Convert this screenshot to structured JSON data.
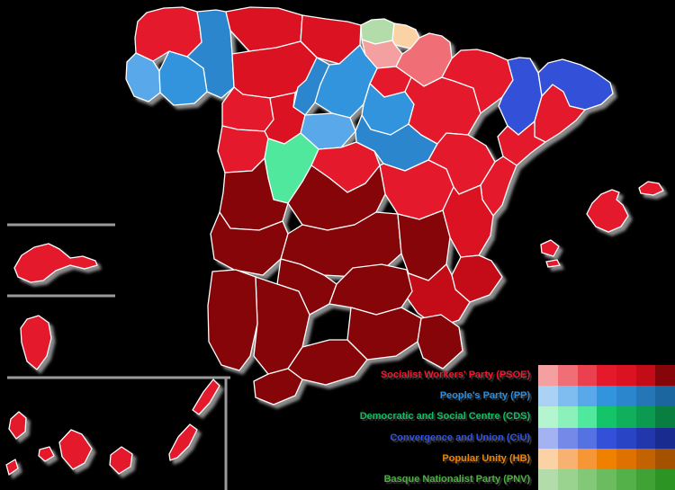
{
  "map": {
    "background_color": "#000000",
    "province_border_color": "#FFFFFF",
    "separator_color": "#9A9A9A",
    "regions": [
      {
        "id": "a-coruna",
        "name": "A Coruña",
        "party": "PSOE",
        "color": "#E4192B"
      },
      {
        "id": "lugo",
        "name": "Lugo",
        "party": "PP",
        "color": "#2B86CE"
      },
      {
        "id": "pontevedra",
        "name": "Pontevedra",
        "party": "PP",
        "color": "#58A8EA"
      },
      {
        "id": "ourense",
        "name": "Ourense",
        "party": "PP",
        "color": "#3394DE"
      },
      {
        "id": "asturias",
        "name": "Asturias",
        "party": "PSOE",
        "color": "#DA1222"
      },
      {
        "id": "cantabria",
        "name": "Cantabria",
        "party": "PSOE",
        "color": "#DA1222"
      },
      {
        "id": "biscay",
        "name": "Biscay",
        "party": "PNV",
        "color": "#B2DCAA"
      },
      {
        "id": "gipuzkoa",
        "name": "Gipuzkoa",
        "party": "HB",
        "color": "#FAD2A6"
      },
      {
        "id": "alava",
        "name": "Álava",
        "party": "PSOE",
        "color": "#F5A0A0"
      },
      {
        "id": "navarra",
        "name": "Navarre",
        "party": "PSOE",
        "color": "#F06F77"
      },
      {
        "id": "la-rioja",
        "name": "La Rioja",
        "party": "PSOE",
        "color": "#E4192B"
      },
      {
        "id": "leon",
        "name": "León",
        "party": "PSOE",
        "color": "#DA1222"
      },
      {
        "id": "palencia",
        "name": "Palencia",
        "party": "PP",
        "color": "#2B86CE"
      },
      {
        "id": "burgos",
        "name": "Burgos",
        "party": "PP",
        "color": "#3394DE"
      },
      {
        "id": "zamora",
        "name": "Zamora",
        "party": "PSOE",
        "color": "#E4192B"
      },
      {
        "id": "valladolid",
        "name": "Valladolid",
        "party": "PSOE",
        "color": "#DA1222"
      },
      {
        "id": "soria",
        "name": "Soria",
        "party": "PP",
        "color": "#3394DE"
      },
      {
        "id": "segovia",
        "name": "Segovia",
        "party": "PP",
        "color": "#58A8EA"
      },
      {
        "id": "salamanca",
        "name": "Salamanca",
        "party": "PSOE",
        "color": "#E4192B"
      },
      {
        "id": "avila",
        "name": "Ávila",
        "party": "CDS",
        "color": "#50E89C"
      },
      {
        "id": "madrid",
        "name": "Madrid",
        "party": "PSOE",
        "color": "#E4192B"
      },
      {
        "id": "guadalajara",
        "name": "Guadalajara",
        "party": "PP",
        "color": "#2B86CE"
      },
      {
        "id": "zaragoza",
        "name": "Zaragoza",
        "party": "PSOE",
        "color": "#E4192B"
      },
      {
        "id": "huesca",
        "name": "Huesca",
        "party": "PSOE",
        "color": "#E4192B"
      },
      {
        "id": "teruel",
        "name": "Teruel",
        "party": "PSOE",
        "color": "#E4192B"
      },
      {
        "id": "girona",
        "name": "Girona",
        "party": "CiU",
        "color": "#3250D8"
      },
      {
        "id": "lleida",
        "name": "Lleida",
        "party": "CiU",
        "color": "#3250D8"
      },
      {
        "id": "barcelona",
        "name": "Barcelona",
        "party": "PSOE",
        "color": "#E4192B"
      },
      {
        "id": "tarragona",
        "name": "Tarragona",
        "party": "PSOE",
        "color": "#E4192B"
      },
      {
        "id": "castellon",
        "name": "Castellón",
        "party": "PSOE",
        "color": "#E4192B"
      },
      {
        "id": "cuenca",
        "name": "Cuenca",
        "party": "PSOE",
        "color": "#E4192B"
      },
      {
        "id": "valencia",
        "name": "Valencia",
        "party": "PSOE",
        "color": "#DA1222"
      },
      {
        "id": "toledo",
        "name": "Toledo",
        "party": "PSOE",
        "color": "#860509"
      },
      {
        "id": "caceres",
        "name": "Cáceres",
        "party": "PSOE",
        "color": "#860509"
      },
      {
        "id": "badajoz",
        "name": "Badajoz",
        "party": "PSOE",
        "color": "#860509"
      },
      {
        "id": "ciudad-real",
        "name": "Ciudad Real",
        "party": "PSOE",
        "color": "#860509"
      },
      {
        "id": "albacete",
        "name": "Albacete",
        "party": "PSOE",
        "color": "#860509"
      },
      {
        "id": "alicante",
        "name": "Alicante",
        "party": "PSOE",
        "color": "#C30C17"
      },
      {
        "id": "murcia",
        "name": "Murcia",
        "party": "PSOE",
        "color": "#C30C17"
      },
      {
        "id": "cordoba",
        "name": "Córdoba",
        "party": "PSOE",
        "color": "#860509"
      },
      {
        "id": "jaen",
        "name": "Jaén",
        "party": "PSOE",
        "color": "#860509"
      },
      {
        "id": "granada",
        "name": "Granada",
        "party": "PSOE",
        "color": "#860509"
      },
      {
        "id": "almeria",
        "name": "Almería",
        "party": "PSOE",
        "color": "#860509"
      },
      {
        "id": "sevilla",
        "name": "Sevilla",
        "party": "PSOE",
        "color": "#860509"
      },
      {
        "id": "huelva",
        "name": "Huelva",
        "party": "PSOE",
        "color": "#860509"
      },
      {
        "id": "malaga",
        "name": "Málaga",
        "party": "PSOE",
        "color": "#860509"
      },
      {
        "id": "cadiz",
        "name": "Cádiz",
        "party": "PSOE",
        "color": "#860509"
      },
      {
        "id": "mallorca",
        "name": "Mallorca",
        "party": "PSOE",
        "color": "#E4192B"
      },
      {
        "id": "menorca",
        "name": "Menorca",
        "party": "PSOE",
        "color": "#E4192B"
      },
      {
        "id": "ibiza",
        "name": "Ibiza",
        "party": "PSOE",
        "color": "#E4192B"
      },
      {
        "id": "formentera",
        "name": "Formentera",
        "party": "PSOE",
        "color": "#E4192B"
      },
      {
        "id": "la-palma",
        "name": "La Palma",
        "party": "PSOE",
        "color": "#E4192B"
      },
      {
        "id": "el-hierro",
        "name": "El Hierro",
        "party": "PSOE",
        "color": "#E4192B"
      },
      {
        "id": "la-gomera",
        "name": "La Gomera",
        "party": "PSOE",
        "color": "#E4192B"
      },
      {
        "id": "tenerife",
        "name": "Tenerife",
        "party": "PSOE",
        "color": "#E4192B"
      },
      {
        "id": "gran-canaria",
        "name": "Gran Canaria",
        "party": "PSOE",
        "color": "#E4192B"
      },
      {
        "id": "fuerteventura",
        "name": "Fuerteventura",
        "party": "PSOE",
        "color": "#E4192B"
      },
      {
        "id": "lanzarote",
        "name": "Lanzarote",
        "party": "PSOE",
        "color": "#E4192B"
      },
      {
        "id": "ceuta",
        "name": "Ceuta",
        "party": "PSOE",
        "color": "#E4192B"
      },
      {
        "id": "melilla",
        "name": "Melilla",
        "party": "PSOE",
        "color": "#E4192B"
      }
    ]
  },
  "legend": {
    "entries": [
      {
        "abbr": "PSOE",
        "party": "Socialist Workers' Party (PSOE)",
        "label_color": "#F0182C",
        "shades": [
          "#F5A0A0",
          "#F06F77",
          "#EB404D",
          "#E4192B",
          "#DA1222",
          "#C30C17",
          "#860509"
        ]
      },
      {
        "abbr": "PP",
        "party": "People's Party (PP)",
        "label_color": "#2E8CD8",
        "shades": [
          "#ABD1F5",
          "#7FBCF0",
          "#58A8EA",
          "#3394DE",
          "#2B86CE",
          "#2476B6",
          "#1C66A0"
        ]
      },
      {
        "abbr": "CDS",
        "party": "Democratic and Social Centre (CDS)",
        "label_color": "#10C060",
        "shades": [
          "#B4F5CF",
          "#8BF0B9",
          "#50E89C",
          "#13C568",
          "#0FAF5B",
          "#0C9A50",
          "#087E41"
        ]
      },
      {
        "abbr": "CiU",
        "party": "Convergence and Union (CiU)",
        "label_color": "#3553DC",
        "shades": [
          "#A3B2F1",
          "#7589E9",
          "#5571E2",
          "#3250D8",
          "#2A44C6",
          "#2237AC",
          "#192B8E"
        ]
      },
      {
        "abbr": "HB",
        "party": "Popular Unity (HB)",
        "label_color": "#F08200",
        "shades": [
          "#FAD2A6",
          "#F7B271",
          "#F79637",
          "#EF8000",
          "#DF7100",
          "#C36200",
          "#A45200"
        ]
      },
      {
        "abbr": "PNV",
        "party": "Basque Nationalist Party (PNV)",
        "label_color": "#4FAE44",
        "shades": [
          "#B2DCAA",
          "#9AD290",
          "#82C877",
          "#6ABC5E",
          "#54B048",
          "#40A234",
          "#2C9422"
        ]
      }
    ]
  }
}
